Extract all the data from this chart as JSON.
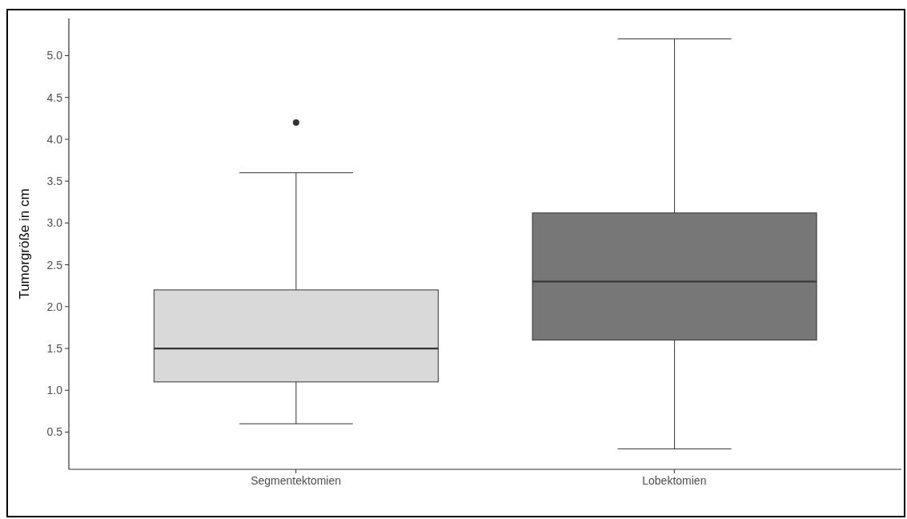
{
  "chart_data": {
    "type": "box",
    "ylabel": "Tumorgröße in cm",
    "categories": [
      "Segmentektomien",
      "Lobektomien"
    ],
    "boxes": [
      {
        "low": 0.6,
        "q1": 1.1,
        "median": 1.5,
        "q3": 2.2,
        "high": 3.6,
        "outliers": [
          4.2
        ]
      },
      {
        "low": 0.3,
        "q1": 1.6,
        "median": 2.3,
        "q3": 3.12,
        "high": 5.2
      }
    ],
    "colors": [
      "#d9d9d9",
      "#777777"
    ],
    "ylim": [
      0.055,
      5.445
    ],
    "yticks": [
      0.5,
      {
        "value": 1,
        "label": "1.0"
      },
      1.5,
      {
        "value": 2,
        "label": "2.0"
      },
      2.5,
      {
        "value": 3,
        "label": "3.0"
      },
      3.5,
      {
        "value": 4,
        "label": "4.0"
      },
      4.5,
      {
        "value": 5,
        "label": "5.0"
      }
    ]
  }
}
